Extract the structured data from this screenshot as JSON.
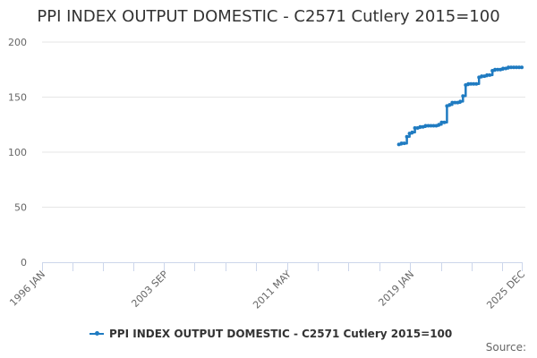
{
  "title": "PPI INDEX OUTPUT DOMESTIC - C2571 Cutlery 2015=100",
  "legend": {
    "label": "PPI INDEX OUTPUT DOMESTIC - C2571 Cutlery 2015=100",
    "color": "#1f7bc1"
  },
  "source_label": "Source:",
  "chart_data": {
    "type": "line",
    "title": "PPI INDEX OUTPUT DOMESTIC - C2571 Cutlery 2015=100",
    "xlabel": "",
    "ylabel": "",
    "ylim": [
      0,
      200
    ],
    "yticks": [
      0,
      50,
      100,
      150,
      200
    ],
    "xtick_labels": [
      "1996 JAN",
      "2003 SEP",
      "2011 MAY",
      "2019 JAN",
      "2025 DEC"
    ],
    "grid": true,
    "legend_position": "bottom",
    "series": [
      {
        "name": "PPI INDEX OUTPUT DOMESTIC - C2571 Cutlery 2015=100",
        "color": "#1f7bc1",
        "x": [
          "2018 APR",
          "2018 JUN",
          "2018 AUG",
          "2018 OCT",
          "2018 DEC",
          "2019 FEB",
          "2019 APR",
          "2019 JUN",
          "2019 AUG",
          "2019 OCT",
          "2019 DEC",
          "2020 FEB",
          "2020 APR",
          "2020 JUN",
          "2020 AUG",
          "2020 OCT",
          "2020 DEC",
          "2021 FEB",
          "2021 APR",
          "2021 JUN",
          "2021 AUG",
          "2021 OCT",
          "2021 DEC",
          "2022 FEB",
          "2022 APR",
          "2022 JUN",
          "2022 AUG",
          "2022 OCT",
          "2022 DEC",
          "2023 FEB",
          "2023 APR",
          "2023 JUN",
          "2023 AUG",
          "2023 OCT",
          "2023 DEC",
          "2024 FEB",
          "2024 APR",
          "2024 JUN",
          "2024 AUG",
          "2024 OCT",
          "2024 DEC",
          "2025 FEB",
          "2025 APR",
          "2025 JUN",
          "2025 AUG",
          "2025 OCT",
          "2025 DEC"
        ],
        "values": [
          107,
          108,
          108,
          114,
          117,
          118,
          122,
          122,
          123,
          123,
          124,
          124,
          124,
          124,
          124,
          125,
          127,
          127,
          142,
          143,
          145,
          145,
          145,
          146,
          151,
          161,
          162,
          162,
          162,
          162,
          168,
          169,
          169,
          170,
          170,
          174,
          175,
          175,
          175,
          176,
          176,
          177,
          177,
          177,
          177,
          177,
          177
        ]
      }
    ]
  }
}
